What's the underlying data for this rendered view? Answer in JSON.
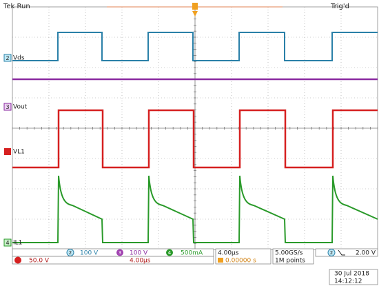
{
  "header": {
    "status": "Tek Run",
    "trigger_state": "Trig'd"
  },
  "channels": [
    {
      "number": "2",
      "label": "Vds"
    },
    {
      "number": "3",
      "label": "Vout"
    },
    {
      "label": "VL1"
    },
    {
      "number": "4",
      "label": "IL1"
    }
  ],
  "channel_scales": [
    {
      "number": "2",
      "scale": "100 V"
    },
    {
      "number": "3",
      "scale": "100 V"
    },
    {
      "number": "4",
      "scale": "500mA"
    }
  ],
  "math": {
    "scale": "50.0 V",
    "time": "4.00µs"
  },
  "timebase": {
    "scale": "4.00µs",
    "position": "0.00000 s"
  },
  "acquisition": {
    "rate": "5.00GS/s",
    "length": "1M points"
  },
  "trigger": {
    "source": "2",
    "level": "2.00 V"
  },
  "datetime": {
    "date": "30 Jul 2018",
    "time": "14:12:12"
  }
}
